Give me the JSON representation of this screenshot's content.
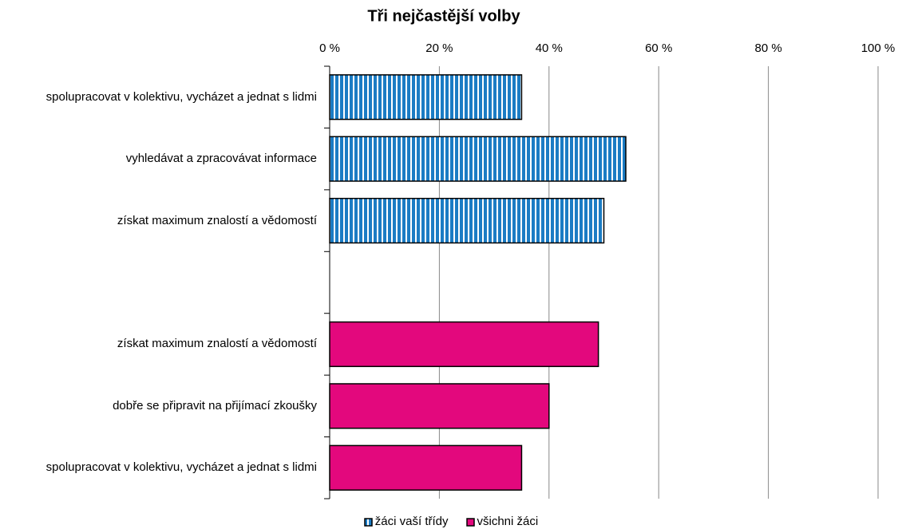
{
  "chart_data": {
    "type": "hbar",
    "title": "Tři nejčastější volby",
    "categories": [
      "spolupracovat v kolektivu, vycházet a jednat s lidmi",
      "vyhledávat a zpracovávat informace",
      "získat maximum znalostí a vědomostí",
      null,
      "získat maximum znalostí a vědomostí",
      "dobře se připravit na přijímací zkoušky",
      "spolupracovat v kolektivu, vycházet a jednat s lidmi"
    ],
    "series": [
      {
        "name": "žáci vaší třídy",
        "color": "#1b7cc4",
        "pattern": "vertical-stripes",
        "values": [
          35,
          54,
          50,
          null,
          null,
          null,
          null
        ]
      },
      {
        "name": "všichni žáci",
        "color": "#e3087d",
        "values": [
          null,
          null,
          null,
          null,
          49,
          40,
          35
        ]
      }
    ],
    "xlim": [
      0,
      100
    ],
    "xticks": [
      {
        "value": 0,
        "label": "0 %"
      },
      {
        "value": 20,
        "label": "20 %"
      },
      {
        "value": 40,
        "label": "40 %"
      },
      {
        "value": 60,
        "label": "60 %"
      },
      {
        "value": 80,
        "label": "80 %"
      },
      {
        "value": 100,
        "label": "100 %"
      }
    ],
    "grid": true
  }
}
